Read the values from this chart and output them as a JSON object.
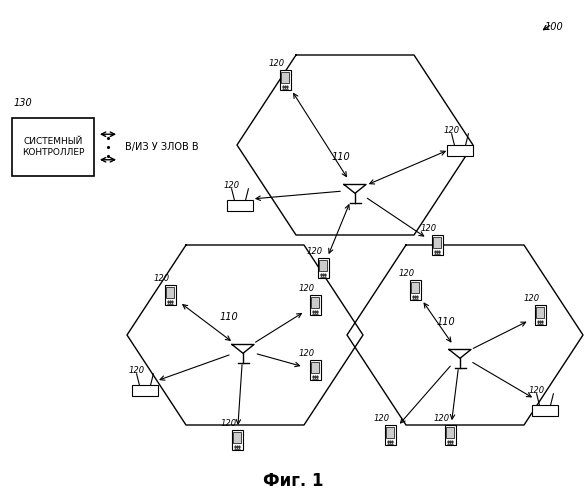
{
  "title": "Фиг. 1",
  "label_100": "100",
  "label_130": "130",
  "label_sys_ctrl": "СИСТЕМНЫЙ\nКОНТРОЛЛЕР",
  "label_io_nodes": "В/ИЗ У ЗЛОВ В",
  "label_bs": "110",
  "label_ue": "120",
  "bg_color": "#ffffff",
  "hex_color": "#000000",
  "arrow_color": "#000000"
}
